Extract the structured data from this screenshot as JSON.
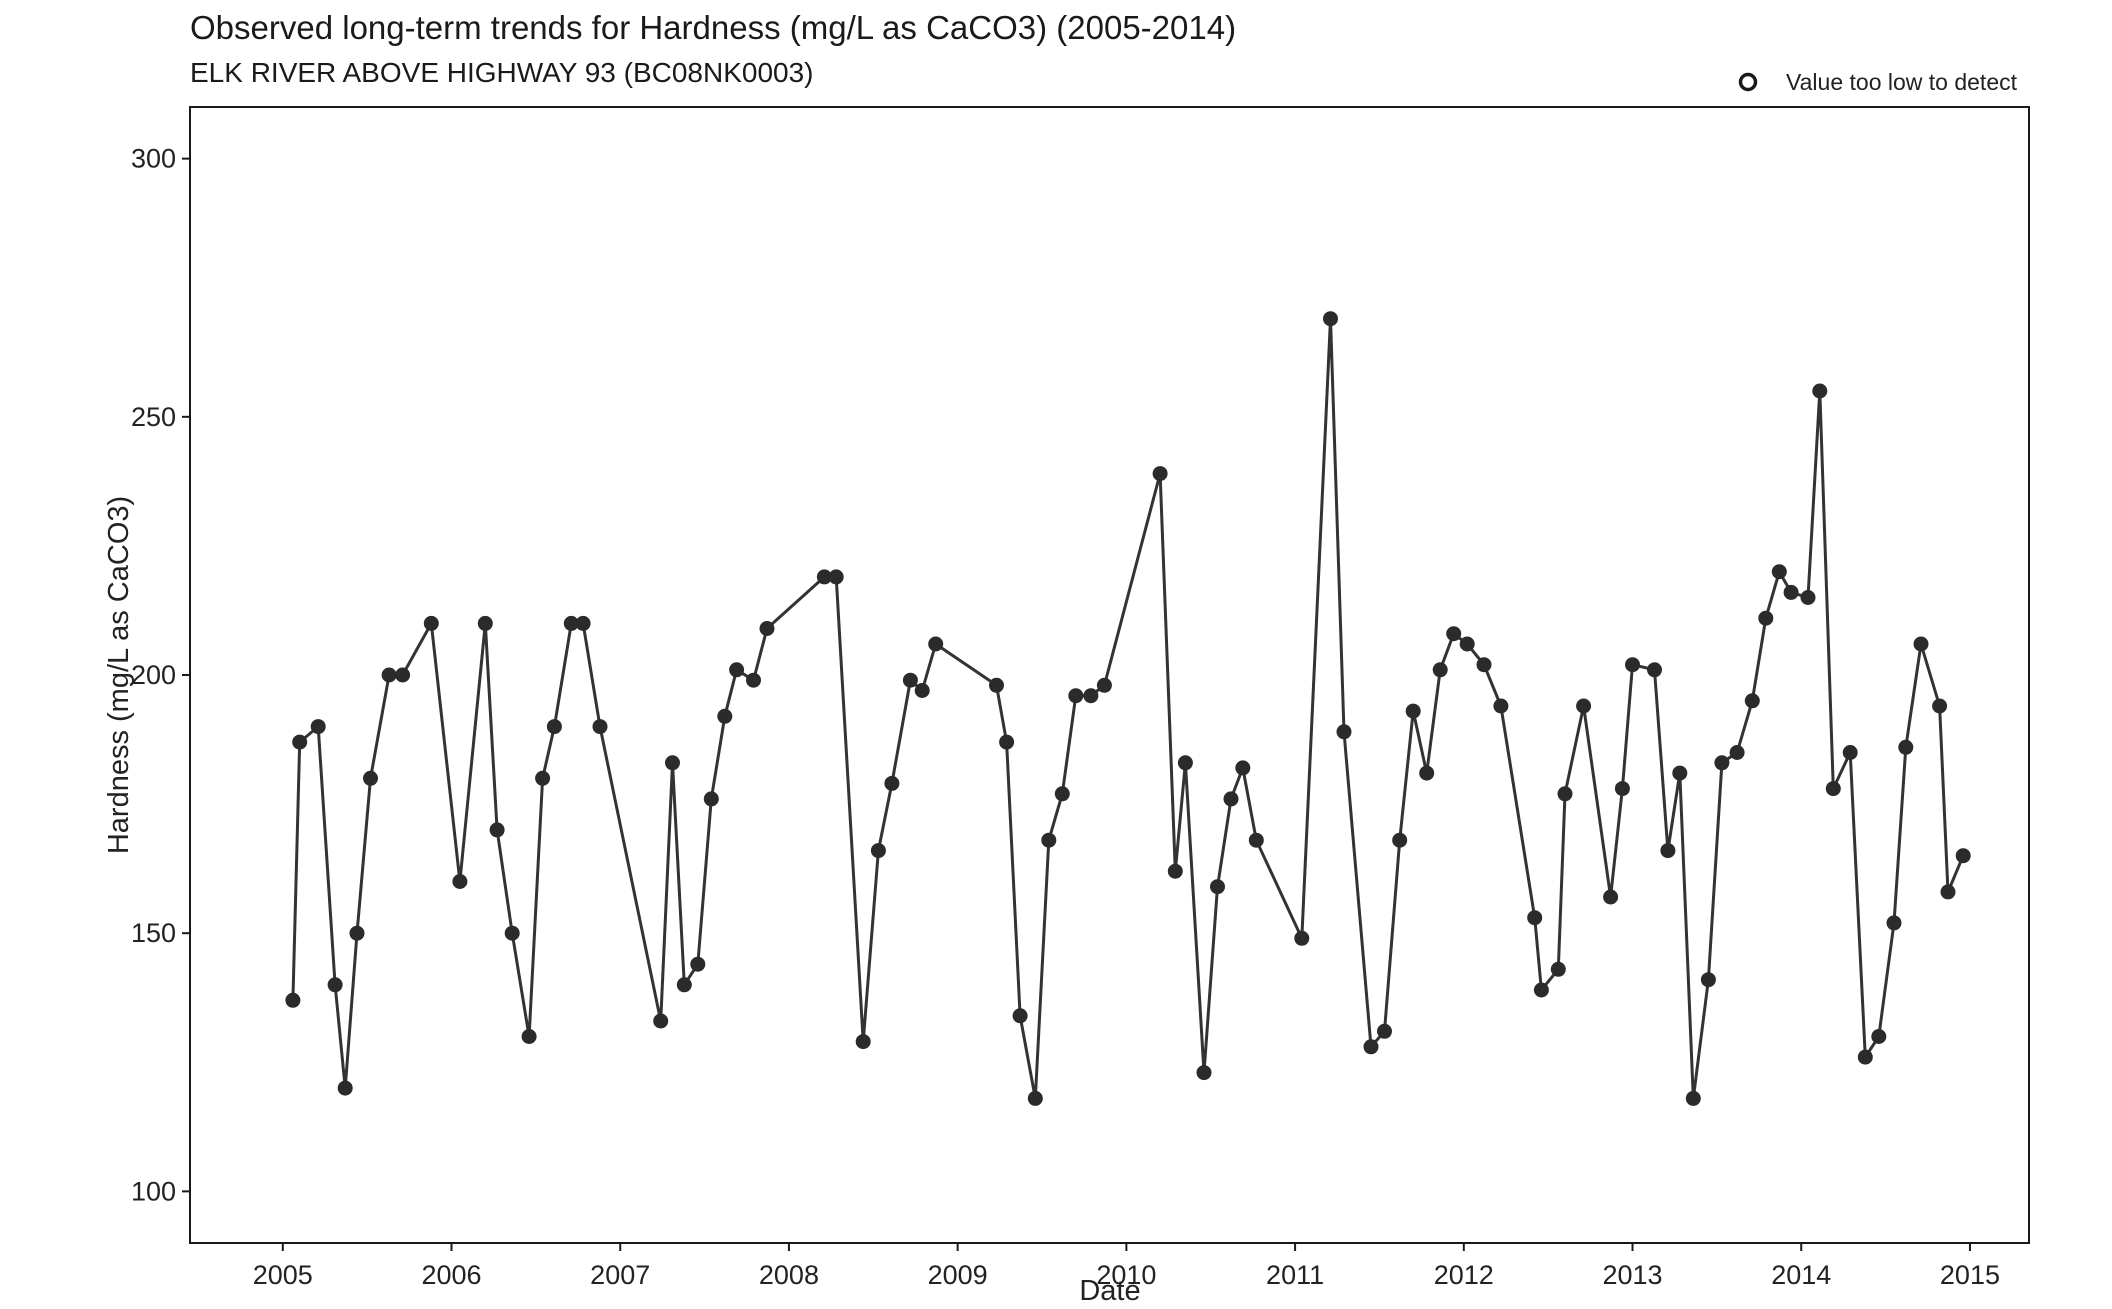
{
  "chart_data": {
    "type": "line",
    "title": "Observed long-term trends for Hardness (mg/L as CaCO3) (2005-2014)",
    "subtitle": "ELK RIVER ABOVE HIGHWAY 93 (BC08NK0003)",
    "xlabel": "Date",
    "ylabel": "Hardness (mg/L as CaCO3)",
    "xlim": [
      2004.45,
      2015.35
    ],
    "ylim": [
      90,
      310
    ],
    "x_ticks": [
      2005,
      2006,
      2007,
      2008,
      2009,
      2010,
      2011,
      2012,
      2013,
      2014,
      2015
    ],
    "x_tick_labels": [
      "2005",
      "2006",
      "2007",
      "2008",
      "2009",
      "2010",
      "2011",
      "2012",
      "2013",
      "2014",
      "2015"
    ],
    "y_ticks": [
      100,
      150,
      200,
      250,
      300
    ],
    "y_tick_labels": [
      "100",
      "150",
      "200",
      "250",
      "300"
    ],
    "grid": false,
    "legend": {
      "position": "top-right",
      "marker": "open-circle",
      "label": "Value too low to detect"
    },
    "colors": {
      "line": "#333333",
      "point": "#2b2b2b",
      "frame": "#1a1a1a"
    },
    "series": [
      {
        "x": [
          2005.06,
          2005.1,
          2005.21,
          2005.31,
          2005.37,
          2005.44,
          2005.52,
          2005.63,
          2005.71,
          2005.88,
          2006.05,
          2006.2,
          2006.27,
          2006.36,
          2006.46,
          2006.54,
          2006.61,
          2006.71,
          2006.78,
          2006.88,
          2007.24,
          2007.31,
          2007.38,
          2007.46,
          2007.54,
          2007.62,
          2007.69,
          2007.79,
          2007.87,
          2008.21,
          2008.28,
          2008.44,
          2008.53,
          2008.61,
          2008.72,
          2008.79,
          2008.87,
          2009.23,
          2009.29,
          2009.37,
          2009.46,
          2009.54,
          2009.62,
          2009.7,
          2009.79,
          2009.87,
          2010.2,
          2010.29,
          2010.35,
          2010.46,
          2010.54,
          2010.62,
          2010.69,
          2010.77,
          2011.04,
          2011.21,
          2011.29,
          2011.45,
          2011.53,
          2011.62,
          2011.7,
          2011.78,
          2011.86,
          2011.94,
          2012.02,
          2012.12,
          2012.22,
          2012.42,
          2012.46,
          2012.56,
          2012.6,
          2012.71,
          2012.87,
          2012.94,
          2013.0,
          2013.13,
          2013.21,
          2013.28,
          2013.36,
          2013.45,
          2013.53,
          2013.62,
          2013.71,
          2013.79,
          2013.87,
          2013.94,
          2014.04,
          2014.11,
          2014.19,
          2014.29,
          2014.38,
          2014.46,
          2014.55,
          2014.62,
          2014.71,
          2014.82,
          2014.87,
          2014.96
        ],
        "y": [
          137,
          187,
          190,
          140,
          120,
          150,
          180,
          200,
          200,
          210,
          160,
          210,
          170,
          150,
          130,
          180,
          190,
          210,
          210,
          190,
          133,
          183,
          140,
          144,
          176,
          192,
          201,
          199,
          209,
          219,
          219,
          129,
          166,
          179,
          199,
          197,
          206,
          198,
          187,
          134,
          118,
          168,
          177,
          196,
          196,
          198,
          239,
          162,
          183,
          123,
          159,
          176,
          182,
          168,
          149,
          269,
          189,
          128,
          131,
          168,
          193,
          181,
          201,
          208,
          206,
          202,
          194,
          153,
          139,
          143,
          177,
          194,
          157,
          178,
          202,
          201,
          166,
          181,
          118,
          141,
          183,
          185,
          195,
          211,
          220,
          216,
          215,
          255,
          178,
          185,
          126,
          130,
          152,
          186,
          206,
          194,
          158,
          165
        ]
      }
    ]
  }
}
